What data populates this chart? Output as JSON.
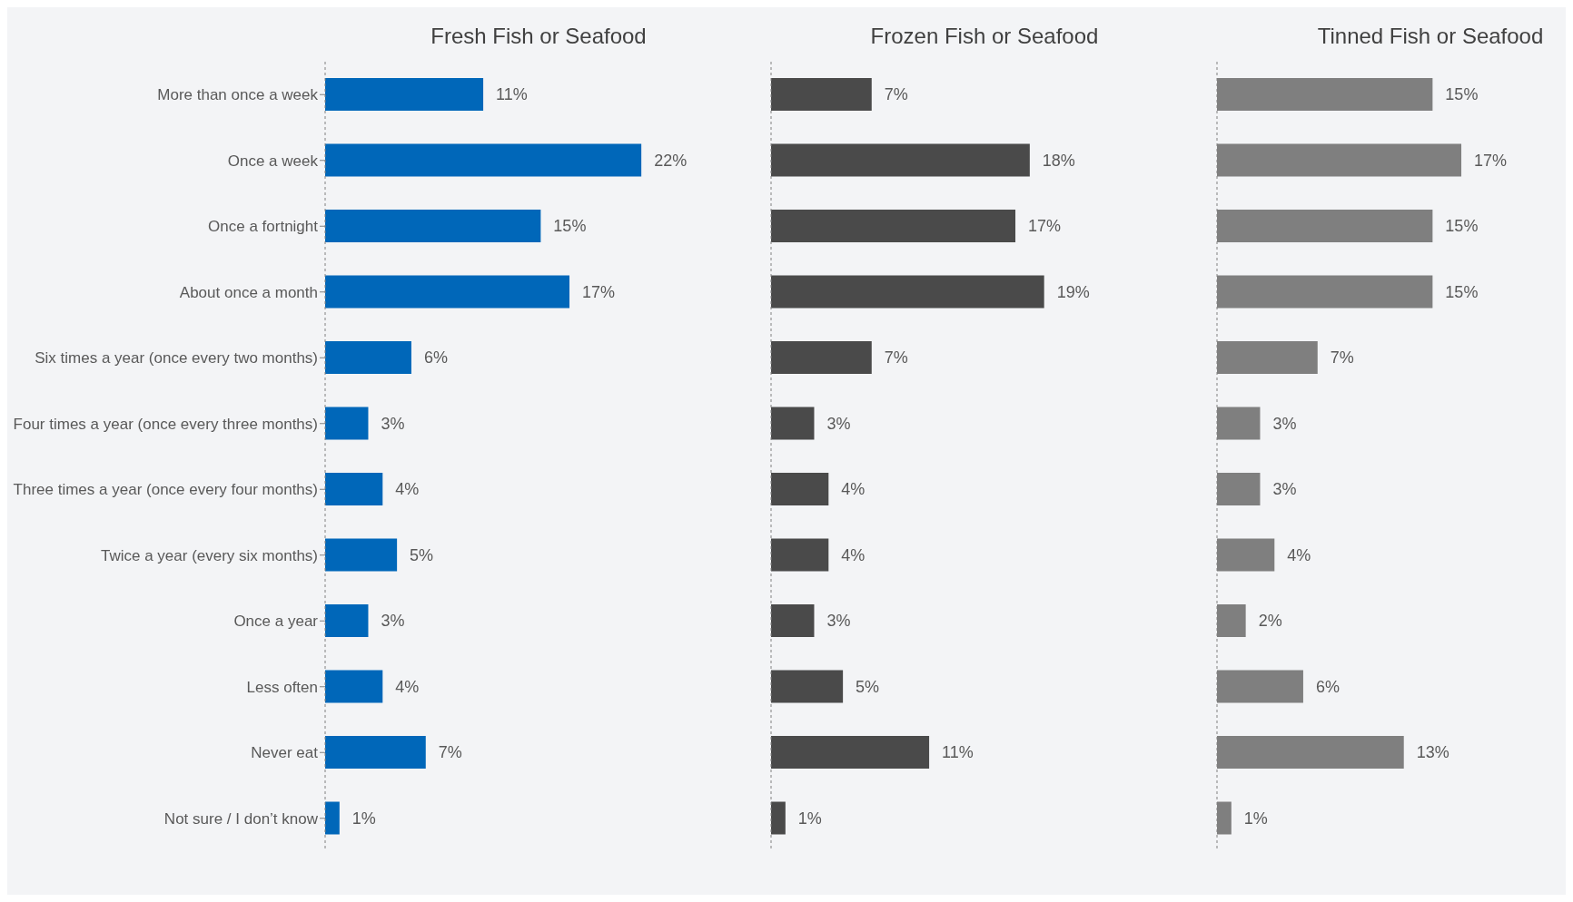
{
  "chart_data": [
    {
      "type": "bar",
      "orientation": "horizontal",
      "title": "Fresh Fish or Seafood",
      "categories": [
        "More than once a week",
        "Once a week",
        "Once a fortnight",
        "About once a month",
        "Six times a year (once every two months)",
        "Four times a year (once every three months)",
        "Three times a year (once every four months)",
        "Twice a year (every six months)",
        "Once a year",
        "Less often",
        "Never eat",
        "Not sure / I don’t know"
      ],
      "values": [
        11,
        22,
        15,
        17,
        6,
        3,
        4,
        5,
        3,
        4,
        7,
        1
      ],
      "value_labels": [
        "11%",
        "22%",
        "15%",
        "17%",
        "6%",
        "3%",
        "4%",
        "5%",
        "3%",
        "4%",
        "7%",
        "1%"
      ],
      "color": "#0067b9",
      "tick_labels": "y"
    },
    {
      "type": "bar",
      "orientation": "horizontal",
      "title": "Frozen Fish or Seafood",
      "values": [
        7,
        18,
        17,
        19,
        7,
        3,
        4,
        4,
        3,
        5,
        11,
        1
      ],
      "value_labels": [
        "7%",
        "18%",
        "17%",
        "19%",
        "7%",
        "3%",
        "4%",
        "4%",
        "3%",
        "5%",
        "11%",
        "1%"
      ],
      "color": "#4a4a4a",
      "tick_labels": false
    },
    {
      "type": "bar",
      "orientation": "horizontal",
      "title": "Tinned Fish or Seafood",
      "values": [
        15,
        17,
        15,
        15,
        7,
        3,
        3,
        4,
        2,
        6,
        13,
        1
      ],
      "value_labels": [
        "15%",
        "17%",
        "15%",
        "15%",
        "7%",
        "3%",
        "3%",
        "4%",
        "2%",
        "6%",
        "13%",
        "1%"
      ],
      "color": "#7f7f7f",
      "tick_labels": false
    }
  ]
}
